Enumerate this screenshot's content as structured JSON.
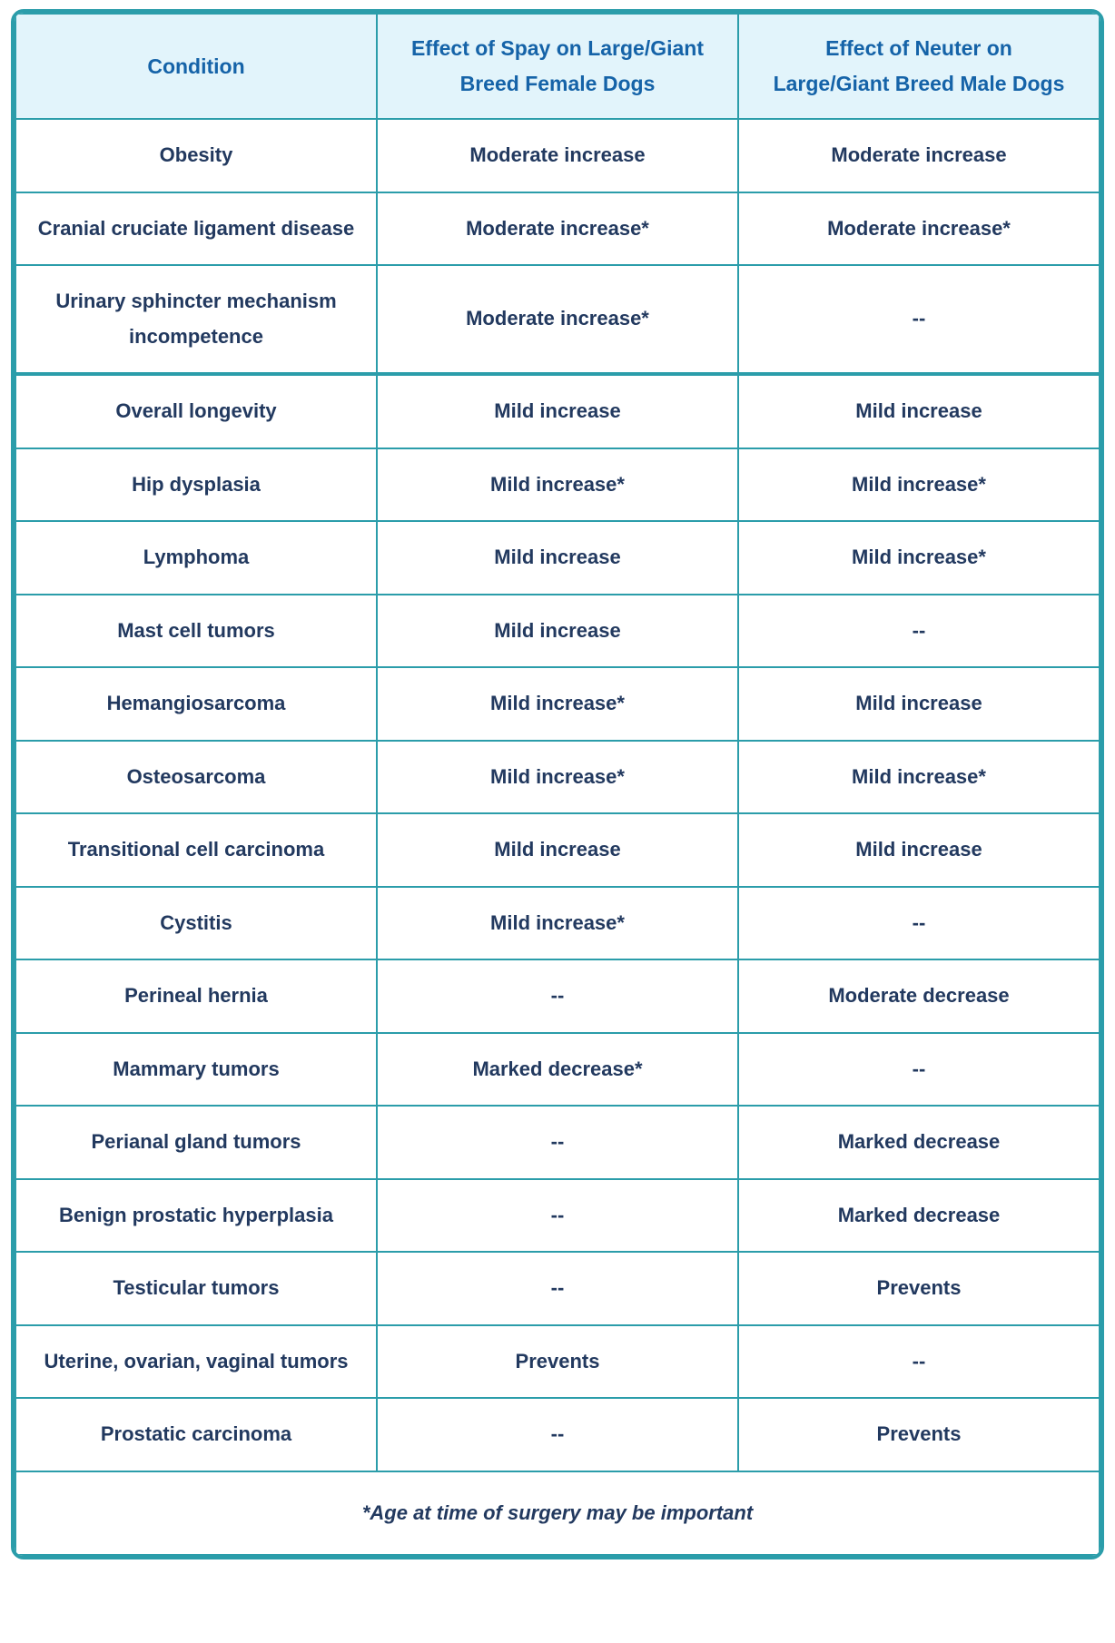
{
  "theme": {
    "border": "#2b9daa",
    "header_bg": "#e2f4fb",
    "header_text": "#1563a8",
    "body_text": "#22395f"
  },
  "header": {
    "condition": "Condition",
    "spay_line1": "Effect of Spay on Large/Giant",
    "spay_line2": "Breed Female Dogs",
    "neuter_line1": "Effect of Neuter on",
    "neuter_line2": "Large/Giant Breed Male Dogs"
  },
  "rows": [
    {
      "condition": "Obesity",
      "spay": "Moderate increase",
      "neuter": "Moderate increase"
    },
    {
      "condition": "Cranial cruciate ligament disease",
      "spay": "Moderate increase*",
      "neuter": "Moderate increase*"
    },
    {
      "condition": "Urinary sphincter mechanism incompetence",
      "spay": "Moderate increase*",
      "neuter": "--"
    },
    {
      "condition": "Overall longevity",
      "spay": "Mild increase",
      "neuter": "Mild increase"
    },
    {
      "condition": "Hip dysplasia",
      "spay": "Mild increase*",
      "neuter": "Mild increase*"
    },
    {
      "condition": "Lymphoma",
      "spay": "Mild increase",
      "neuter": "Mild increase*"
    },
    {
      "condition": "Mast cell tumors",
      "spay": "Mild increase",
      "neuter": "--"
    },
    {
      "condition": "Hemangiosarcoma",
      "spay": "Mild increase*",
      "neuter": "Mild increase"
    },
    {
      "condition": "Osteosarcoma",
      "spay": "Mild increase*",
      "neuter": "Mild increase*"
    },
    {
      "condition": "Transitional cell carcinoma",
      "spay": "Mild increase",
      "neuter": "Mild increase"
    },
    {
      "condition": "Cystitis",
      "spay": "Mild increase*",
      "neuter": "--"
    },
    {
      "condition": "Perineal hernia",
      "spay": "--",
      "neuter": "Moderate decrease"
    },
    {
      "condition": "Mammary tumors",
      "spay": "Marked decrease*",
      "neuter": "--"
    },
    {
      "condition": "Perianal gland tumors",
      "spay": "--",
      "neuter": "Marked decrease"
    },
    {
      "condition": "Benign prostatic hyperplasia",
      "spay": "--",
      "neuter": "Marked decrease"
    },
    {
      "condition": "Testicular tumors",
      "spay": "--",
      "neuter": "Prevents"
    },
    {
      "condition": "Uterine, ovarian, vaginal tumors",
      "spay": "Prevents",
      "neuter": "--"
    },
    {
      "condition": "Prostatic carcinoma",
      "spay": "--",
      "neuter": "Prevents"
    }
  ],
  "footnote": "*Age at time of surgery may be important"
}
